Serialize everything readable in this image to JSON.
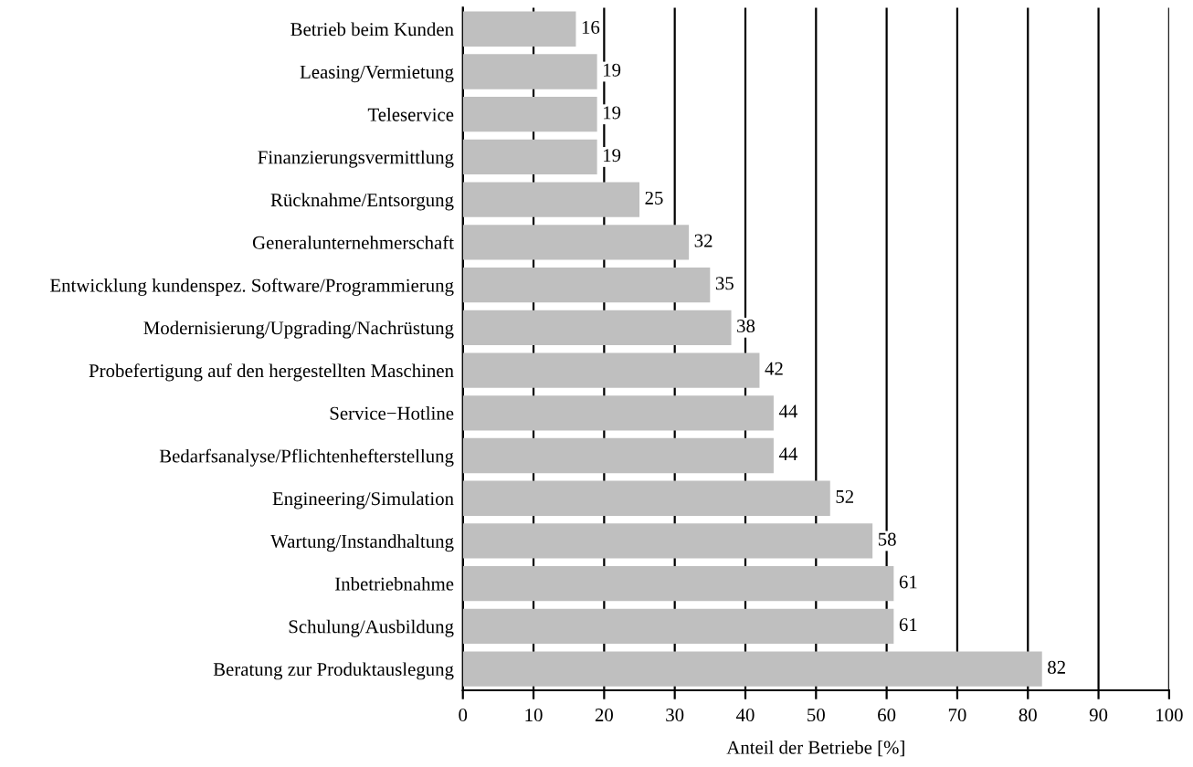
{
  "chart_data": {
    "type": "bar",
    "orientation": "horizontal",
    "xlabel": "Anteil der Betriebe [%]",
    "categories": [
      "Betrieb beim Kunden",
      "Leasing/Vermietung",
      "Teleservice",
      "Finanzierungsvermittlung",
      "Rücknahme/Entsorgung",
      "Generalunternehmerschaft",
      "Entwicklung kundenspez. Software/Programmierung",
      "Modernisierung/Upgrading/Nachrüstung",
      "Probefertigung auf den hergestellten Maschinen",
      "Service−Hotline",
      "Bedarfsanalyse/Pflichtenhefterstellung",
      "Engineering/Simulation",
      "Wartung/Instandhaltung",
      "Inbetriebnahme",
      "Schulung/Ausbildung",
      "Beratung zur Produktauslegung"
    ],
    "values": [
      16,
      19,
      19,
      19,
      25,
      32,
      35,
      38,
      42,
      44,
      44,
      52,
      58,
      61,
      61,
      82
    ],
    "color": "#bfbfbf",
    "data_labels": true,
    "xlim": [
      0,
      100
    ],
    "xticks": [
      0,
      10,
      20,
      30,
      40,
      50,
      60,
      70,
      80,
      90,
      100
    ],
    "grid": "x",
    "legend": false
  }
}
